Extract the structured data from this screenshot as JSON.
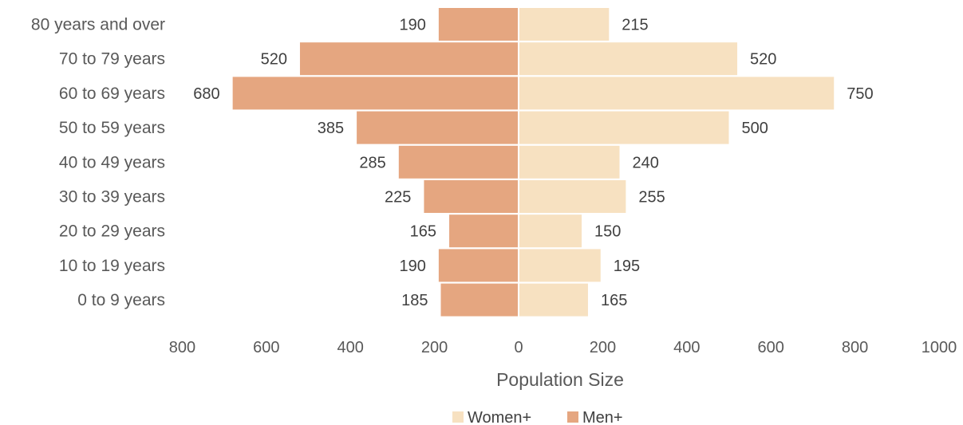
{
  "chart_data": {
    "type": "bar",
    "orientation": "horizontal-diverging",
    "categories": [
      "0 to 9 years",
      "10 to 19 years",
      "20 to 29 years",
      "30 to 39 years",
      "40 to 49 years",
      "50 to 59 years",
      "60 to 69 years",
      "70 to 79 years",
      "80 years and over"
    ],
    "series": [
      {
        "name": "Men+",
        "side": "left",
        "color": "#E5A680",
        "values": [
          185,
          190,
          165,
          225,
          285,
          385,
          680,
          520,
          190
        ]
      },
      {
        "name": "Women+",
        "side": "right",
        "color": "#F7E1C1",
        "values": [
          165,
          195,
          150,
          255,
          240,
          500,
          750,
          520,
          215
        ]
      }
    ],
    "xlabel": "Population Size",
    "xlim": [
      -800,
      1000
    ],
    "xticks": [
      -800,
      -600,
      -400,
      -200,
      0,
      200,
      400,
      600,
      800,
      1000
    ],
    "xtick_labels": [
      "800",
      "600",
      "400",
      "200",
      "0",
      "200",
      "400",
      "600",
      "800",
      "1000"
    ],
    "legend": {
      "position": "bottom",
      "entries": [
        "Women+",
        "Men+"
      ]
    },
    "grid": false
  }
}
